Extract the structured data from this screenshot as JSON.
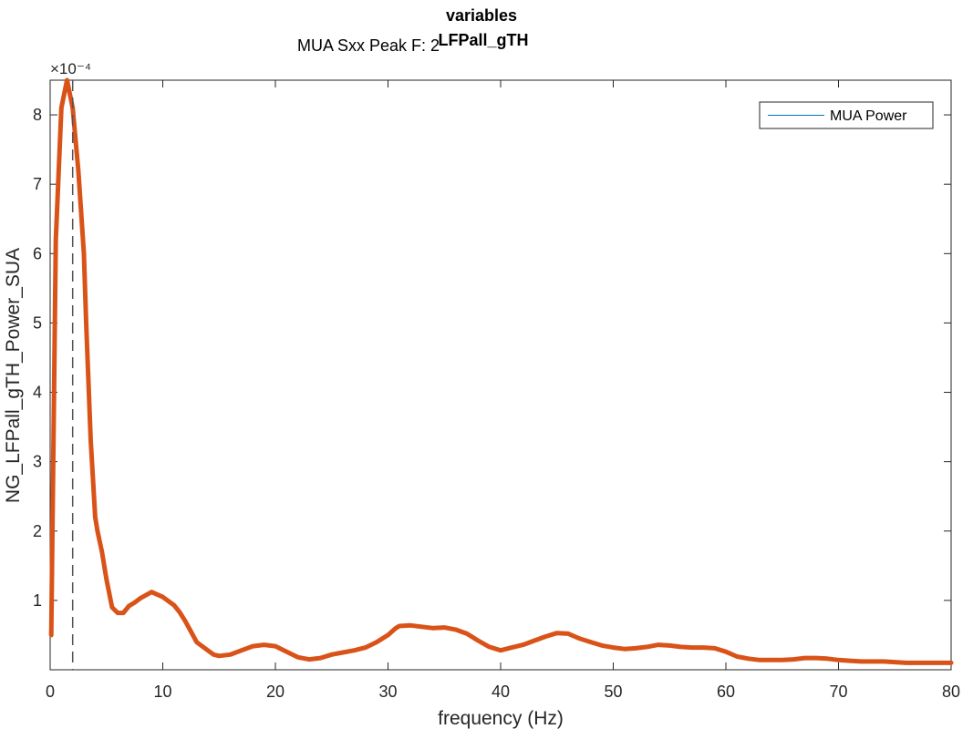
{
  "chart_data": {
    "type": "line",
    "title": "variables",
    "subtitle": "LFPall_gTH",
    "annotation": "MUA Sxx Peak F: 2",
    "xlabel": "frequency (Hz)",
    "ylabel": "NG_LFPall_gTH_Power_SUA",
    "y_exponent_label": "×10⁻⁴",
    "y_scale": 0.0001,
    "xlim": [
      0,
      80
    ],
    "ylim": [
      0,
      8.5
    ],
    "x_ticks": [
      0,
      10,
      20,
      30,
      40,
      50,
      60,
      70,
      80
    ],
    "y_ticks": [
      1,
      2,
      3,
      4,
      5,
      6,
      7,
      8
    ],
    "grid": false,
    "legend_position": "top-right",
    "peak_frequency": 2,
    "colors": {
      "series_line": "#d95319",
      "legend_line": "#0072bd",
      "peak_marker": "#555555",
      "axes": "#262626"
    },
    "legend": [
      {
        "name": "MUA Power"
      }
    ],
    "series": [
      {
        "name": "MUA Power",
        "x": [
          0.1,
          0.5,
          1.0,
          1.5,
          2.0,
          2.5,
          3.0,
          3.2,
          3.6,
          4.0,
          4.2,
          4.6,
          5.0,
          5.5,
          6.0,
          6.5,
          7.0,
          7.5,
          8.0,
          9.0,
          10.0,
          11.0,
          11.5,
          12.0,
          12.5,
          13.0,
          14.0,
          14.5,
          15.0,
          16.0,
          17.0,
          18.0,
          19.0,
          20.0,
          21.0,
          22.0,
          23.0,
          24.0,
          25.0,
          26.0,
          27.0,
          28.0,
          29.0,
          30.0,
          30.7,
          31.0,
          32.0,
          33.0,
          34.0,
          35.0,
          36.0,
          37.0,
          38.0,
          39.0,
          40.0,
          41.0,
          42.0,
          43.0,
          44.0,
          45.0,
          46.0,
          47.0,
          48.0,
          49.0,
          50.0,
          51.0,
          52.0,
          53.0,
          54.0,
          55.0,
          56.0,
          57.0,
          58.0,
          59.0,
          60.0,
          61.0,
          62.0,
          63.0,
          64.0,
          65.0,
          66.0,
          67.0,
          68.0,
          69.0,
          70.0,
          71.0,
          72.0,
          73.0,
          74.0,
          75.0,
          76.0,
          77.0,
          78.0,
          79.0,
          80.0
        ],
        "y": [
          0.5,
          6.2,
          8.1,
          8.5,
          8.1,
          7.2,
          6.0,
          5.0,
          3.3,
          2.2,
          2.0,
          1.7,
          1.3,
          0.9,
          0.82,
          0.82,
          0.92,
          0.97,
          1.03,
          1.12,
          1.05,
          0.93,
          0.83,
          0.7,
          0.55,
          0.4,
          0.28,
          0.22,
          0.2,
          0.22,
          0.28,
          0.34,
          0.36,
          0.34,
          0.26,
          0.18,
          0.15,
          0.17,
          0.22,
          0.25,
          0.28,
          0.32,
          0.4,
          0.5,
          0.6,
          0.63,
          0.64,
          0.62,
          0.6,
          0.61,
          0.58,
          0.52,
          0.42,
          0.33,
          0.28,
          0.32,
          0.36,
          0.42,
          0.48,
          0.53,
          0.52,
          0.45,
          0.4,
          0.35,
          0.32,
          0.3,
          0.31,
          0.33,
          0.36,
          0.35,
          0.33,
          0.32,
          0.32,
          0.31,
          0.26,
          0.19,
          0.16,
          0.14,
          0.14,
          0.14,
          0.15,
          0.17,
          0.17,
          0.16,
          0.14,
          0.13,
          0.12,
          0.12,
          0.12,
          0.11,
          0.1,
          0.1,
          0.1,
          0.1,
          0.1
        ]
      }
    ]
  }
}
